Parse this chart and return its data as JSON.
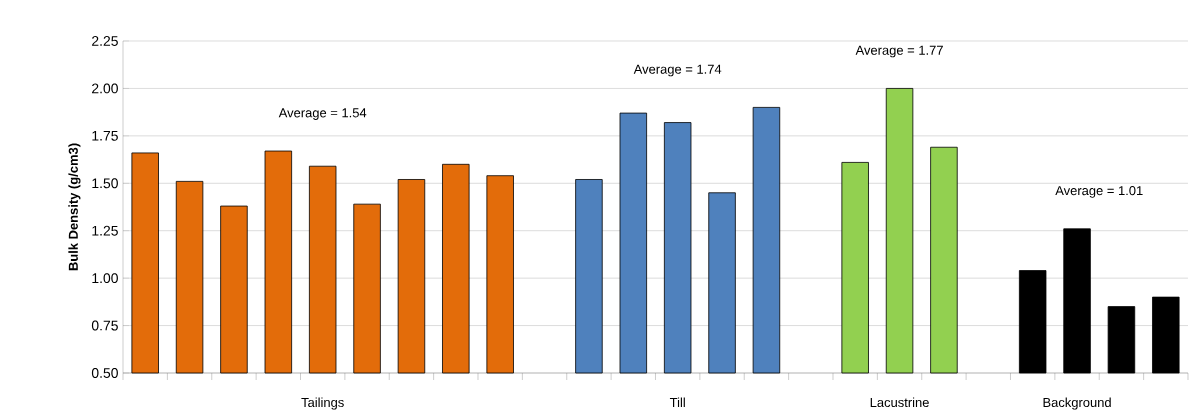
{
  "chart_data": {
    "type": "bar",
    "ylabel": "Bulk Density (g/cm3)",
    "categories": [
      null,
      null,
      null,
      null,
      "Tailings",
      null,
      null,
      null,
      null,
      null,
      null,
      null,
      "Till",
      null,
      null,
      null,
      null,
      "Lacustrine",
      null,
      null,
      null,
      "Background",
      null,
      null
    ],
    "series": [
      {
        "color": "#e36c0a",
        "values": [
          1.66,
          1.51,
          1.38,
          1.67,
          1.59,
          1.39,
          1.52,
          1.6,
          1.54,
          null,
          null,
          null,
          null,
          null,
          null,
          null,
          null,
          null,
          null,
          null,
          null,
          null,
          null,
          null
        ]
      },
      {
        "color": "#4f81bd",
        "values": [
          null,
          null,
          null,
          null,
          null,
          null,
          null,
          null,
          null,
          null,
          1.52,
          1.87,
          1.82,
          1.45,
          1.9,
          null,
          null,
          null,
          null,
          null,
          null,
          null,
          null,
          null
        ]
      },
      {
        "color": "#92d050",
        "values": [
          null,
          null,
          null,
          null,
          null,
          null,
          null,
          null,
          null,
          null,
          null,
          null,
          null,
          null,
          null,
          null,
          1.61,
          2.0,
          1.69,
          null,
          null,
          null,
          null,
          null
        ]
      },
      {
        "color": "#000000",
        "values": [
          null,
          null,
          null,
          null,
          null,
          null,
          null,
          null,
          null,
          null,
          null,
          null,
          null,
          null,
          null,
          null,
          null,
          null,
          null,
          null,
          1.04,
          1.26,
          0.85,
          0.9
        ]
      }
    ],
    "ylim": [
      0.5,
      2.25
    ],
    "yticks": [
      {
        "value": 0.5,
        "label": "0.50"
      },
      0.75,
      {
        "value": 1.0,
        "label": "1.00"
      },
      1.25,
      {
        "value": 1.5,
        "label": "1.50"
      },
      1.75,
      {
        "value": 2.0,
        "label": "2.00"
      },
      2.25
    ],
    "grid": "y",
    "annotations": [
      "Average = 1.54",
      "Average = 1.74",
      "Average = 1.77",
      "Average = 1.01"
    ]
  }
}
